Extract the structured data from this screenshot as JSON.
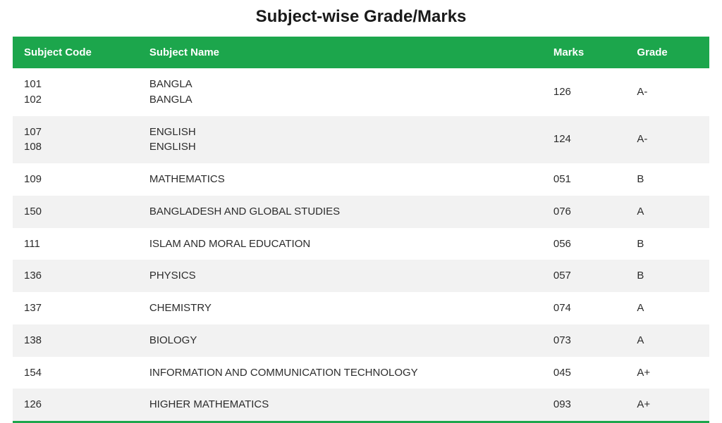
{
  "title": "Subject-wise Grade/Marks",
  "colors": {
    "header_bg": "#1ca64c",
    "header_fg": "#ffffff",
    "row_odd": "#ffffff",
    "row_even": "#f2f2f2",
    "text": "#2c2c2c"
  },
  "table": {
    "columns": [
      "Subject Code",
      "Subject Name",
      "Marks",
      "Grade"
    ],
    "column_widths_pct": [
      18,
      58,
      12,
      12
    ],
    "header_fontsize_pt": 11,
    "body_fontsize_pt": 11,
    "rows": [
      {
        "code": [
          "101",
          "102"
        ],
        "name": [
          "BANGLA",
          "BANGLA"
        ],
        "marks": "126",
        "grade": "A-"
      },
      {
        "code": [
          "107",
          "108"
        ],
        "name": [
          "ENGLISH",
          "ENGLISH"
        ],
        "marks": "124",
        "grade": "A-"
      },
      {
        "code": [
          "109"
        ],
        "name": [
          "MATHEMATICS"
        ],
        "marks": "051",
        "grade": "B"
      },
      {
        "code": [
          "150"
        ],
        "name": [
          "BANGLADESH AND GLOBAL STUDIES"
        ],
        "marks": "076",
        "grade": "A"
      },
      {
        "code": [
          "111"
        ],
        "name": [
          "ISLAM AND MORAL EDUCATION"
        ],
        "marks": "056",
        "grade": "B"
      },
      {
        "code": [
          "136"
        ],
        "name": [
          "PHYSICS"
        ],
        "marks": "057",
        "grade": "B"
      },
      {
        "code": [
          "137"
        ],
        "name": [
          "CHEMISTRY"
        ],
        "marks": "074",
        "grade": "A"
      },
      {
        "code": [
          "138"
        ],
        "name": [
          "BIOLOGY"
        ],
        "marks": "073",
        "grade": "A"
      },
      {
        "code": [
          "154"
        ],
        "name": [
          "INFORMATION AND COMMUNICATION TECHNOLOGY"
        ],
        "marks": "045",
        "grade": "A+"
      },
      {
        "code": [
          "126"
        ],
        "name": [
          "HIGHER MATHEMATICS"
        ],
        "marks": "093",
        "grade": "A+"
      }
    ]
  }
}
